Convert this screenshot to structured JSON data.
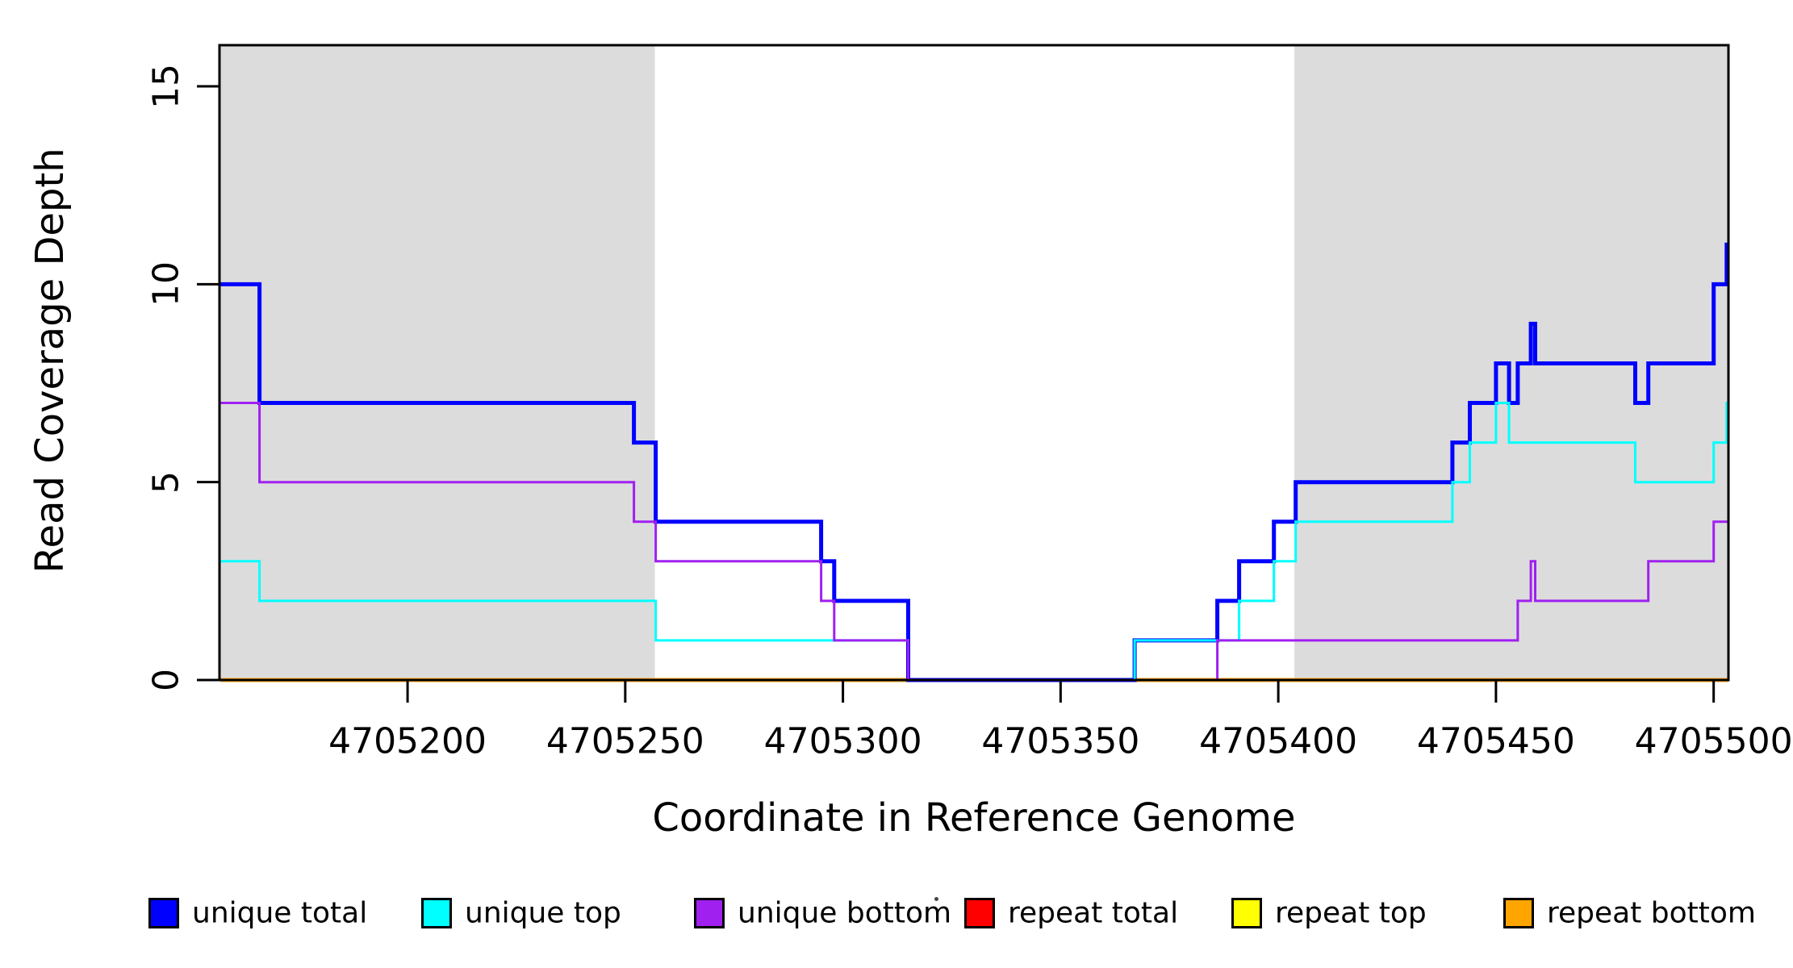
{
  "y_axis": {
    "title": "Read Coverage Depth",
    "ticks": [
      0,
      5,
      10,
      15
    ],
    "tick_labels": [
      "0",
      "5",
      "10",
      "15"
    ]
  },
  "x_axis": {
    "title": "Coordinate in Reference Genome",
    "ticks": [
      4705200,
      4705250,
      4705300,
      4705350,
      4705400,
      4705450,
      4705500
    ],
    "tick_labels": [
      "4705200",
      "4705250",
      "4705300",
      "4705350",
      "4705400",
      "4705450",
      "4705500"
    ]
  },
  "legend": {
    "stray_dot": "true",
    "items": [
      {
        "label": "unique total",
        "color": "#0000FF"
      },
      {
        "label": "unique top",
        "color": "#00FFFF"
      },
      {
        "label": "unique bottom",
        "color": "#A020F0"
      },
      {
        "label": "repeat total",
        "color": "#FF0000"
      },
      {
        "label": "repeat top",
        "color": "#FFFF00"
      },
      {
        "label": "repeat bottom",
        "color": "#FFA500"
      }
    ]
  },
  "colors": {
    "shaded_region": "#DCDCDC",
    "plot_border": "#000000",
    "background": "#FFFFFF"
  },
  "chart_data": {
    "type": "line",
    "subtype": "step",
    "title": "",
    "xlabel": "Coordinate in Reference Genome",
    "ylabel": "Read Coverage Depth",
    "xlim": [
      4705156.8,
      4705503.4
    ],
    "ylim": [
      0,
      16.04
    ],
    "grid": "off",
    "legend_position": "bottom",
    "shaded_regions": [
      {
        "from": 4705156.8,
        "to": 4705256.8
      },
      {
        "from": 4705403.7,
        "to": 4705503.4
      }
    ],
    "series": [
      {
        "name": "unique total",
        "color": "#0000FF",
        "width": 5,
        "steps": [
          [
            4705157,
            10
          ],
          [
            4705166,
            7
          ],
          [
            4705252,
            6
          ],
          [
            4705257,
            4
          ],
          [
            4705295,
            3
          ],
          [
            4705298,
            2
          ],
          [
            4705315,
            0
          ],
          [
            4705367,
            1
          ],
          [
            4705386,
            2
          ],
          [
            4705391,
            3
          ],
          [
            4705399,
            4
          ],
          [
            4705404,
            5
          ],
          [
            4705440,
            6
          ],
          [
            4705444,
            7
          ],
          [
            4705450,
            8
          ],
          [
            4705453,
            7
          ],
          [
            4705455,
            8
          ],
          [
            4705458,
            9
          ],
          [
            4705459,
            8
          ],
          [
            4705482,
            7
          ],
          [
            4705485,
            8
          ],
          [
            4705500,
            10
          ],
          [
            4705503,
            11
          ]
        ]
      },
      {
        "name": "unique top",
        "color": "#00FFFF",
        "width": 3,
        "steps": [
          [
            4705157,
            3
          ],
          [
            4705166,
            2
          ],
          [
            4705257,
            1
          ],
          [
            4705315,
            0
          ],
          [
            4705367,
            1
          ],
          [
            4705391,
            2
          ],
          [
            4705399,
            3
          ],
          [
            4705404,
            4
          ],
          [
            4705440,
            5
          ],
          [
            4705444,
            6
          ],
          [
            4705450,
            7
          ],
          [
            4705453,
            6
          ],
          [
            4705482,
            5
          ],
          [
            4705500,
            6
          ],
          [
            4705503,
            7
          ]
        ]
      },
      {
        "name": "unique bottom",
        "color": "#A020F0",
        "width": 3,
        "steps": [
          [
            4705157,
            7
          ],
          [
            4705166,
            5
          ],
          [
            4705252,
            4
          ],
          [
            4705257,
            3
          ],
          [
            4705295,
            2
          ],
          [
            4705298,
            1
          ],
          [
            4705315,
            0
          ],
          [
            4705386,
            1
          ],
          [
            4705455,
            2
          ],
          [
            4705458,
            3
          ],
          [
            4705459,
            2
          ],
          [
            4705485,
            3
          ],
          [
            4705500,
            4
          ]
        ]
      },
      {
        "name": "repeat total",
        "color": "#FF0000",
        "width": 3,
        "steps": [
          [
            4705157,
            0
          ]
        ]
      },
      {
        "name": "repeat top",
        "color": "#FFFF00",
        "width": 3,
        "steps": [
          [
            4705157,
            0
          ]
        ]
      },
      {
        "name": "repeat bottom",
        "color": "#FFA500",
        "width": 5,
        "steps": [
          [
            4705157,
            0
          ]
        ]
      }
    ],
    "draw_order": [
      3,
      4,
      5,
      0,
      1,
      2
    ]
  }
}
